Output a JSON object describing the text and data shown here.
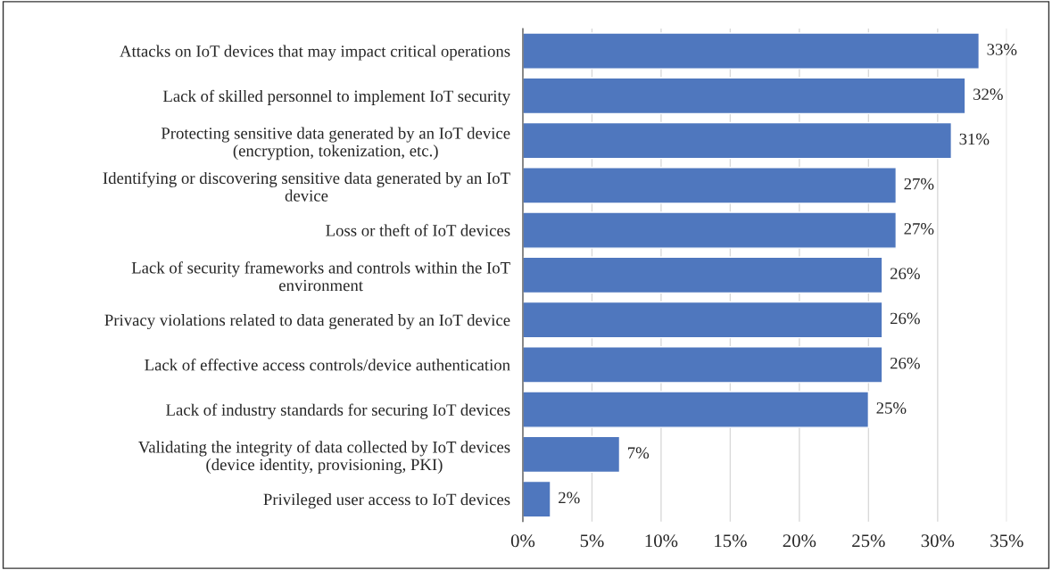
{
  "chart_data": {
    "type": "bar",
    "orientation": "horizontal",
    "categories": [
      "Attacks on IoT devices that may impact critical operations",
      "Lack of skilled personnel to implement IoT security",
      "Protecting sensitive data generated by an IoT device\n(encryption, tokenization, etc.)",
      "Identifying or discovering sensitive data generated by an IoT\ndevice",
      "Loss or theft of IoT devices",
      "Lack of security frameworks and controls within the IoT\nenvironment",
      "Privacy violations related to data generated by an IoT device",
      "Lack of effective access controls/device authentication",
      "Lack of industry standards for securing IoT devices",
      "Validating the integrity of data collected by IoT devices\n(device identity, provisioning, PKI)",
      "Privileged user access to IoT devices"
    ],
    "values": [
      33,
      32,
      31,
      27,
      27,
      26,
      26,
      26,
      25,
      7,
      2
    ],
    "value_labels": [
      "33%",
      "32%",
      "31%",
      "27%",
      "27%",
      "26%",
      "26%",
      "26%",
      "25%",
      "7%",
      "2%"
    ],
    "color": "#4f77be",
    "xlim": [
      0,
      35
    ],
    "xticks": [
      {
        "value": 0,
        "label": "0%"
      },
      {
        "value": 5,
        "label": "5%"
      },
      {
        "value": 10,
        "label": "10%"
      },
      {
        "value": 15,
        "label": "15%"
      },
      {
        "value": 20,
        "label": "20%"
      },
      {
        "value": 25,
        "label": "25%"
      },
      {
        "value": 30,
        "label": "30%"
      },
      {
        "value": 35,
        "label": "35%"
      }
    ],
    "grid": "x"
  }
}
